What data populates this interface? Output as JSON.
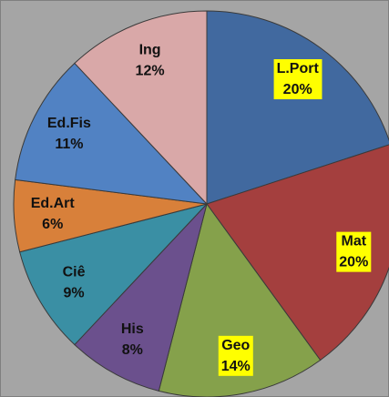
{
  "chart_data": {
    "type": "pie",
    "categories": [
      "L.Port",
      "Mat",
      "Geo",
      "His",
      "Ciê",
      "Ed.Art",
      "Ed.Fis",
      "Ing"
    ],
    "values": [
      20,
      20,
      14,
      8,
      9,
      6,
      11,
      12
    ],
    "value_labels": [
      "20%",
      "20%",
      "14%",
      "8%",
      "9%",
      "6%",
      "11%",
      "12%"
    ],
    "colors": [
      "#41699f",
      "#a43f3e",
      "#85a14b",
      "#6b508d",
      "#3a8fa4",
      "#d8803a",
      "#5182c3",
      "#d9a8a8"
    ],
    "label_backgrounds": [
      "#ffff00",
      "#ffff00",
      "#ffff00",
      null,
      null,
      null,
      null,
      null
    ]
  }
}
